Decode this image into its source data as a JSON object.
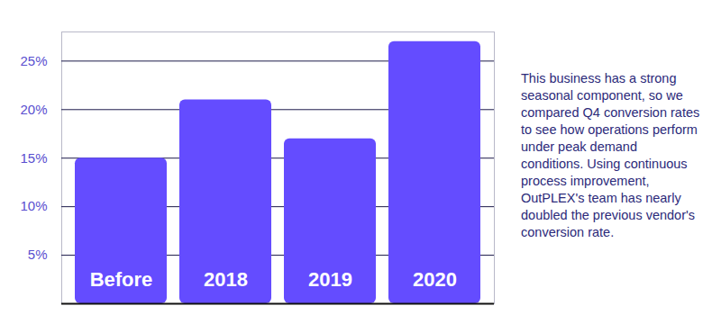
{
  "chart_data": {
    "type": "bar",
    "categories": [
      "Before",
      "2018",
      "2019",
      "2020"
    ],
    "values": [
      15,
      21,
      17,
      27
    ],
    "color": "#644cff",
    "ylim": [
      0,
      28
    ],
    "yticks": [
      {
        "value": 5,
        "label": "5%"
      },
      {
        "value": 10,
        "label": "10%"
      },
      {
        "value": 15,
        "label": "15%"
      },
      {
        "value": 20,
        "label": "20%"
      },
      {
        "value": 25,
        "label": "25%"
      }
    ],
    "grid": true,
    "annotation": "This business has a strong seasonal component, so we compared Q4 conversion rates to see how operations perform under peak demand conditions. Using continuous process improvement, OutPLEX's team has nearly doubled the previous vendor's conversion rate."
  }
}
